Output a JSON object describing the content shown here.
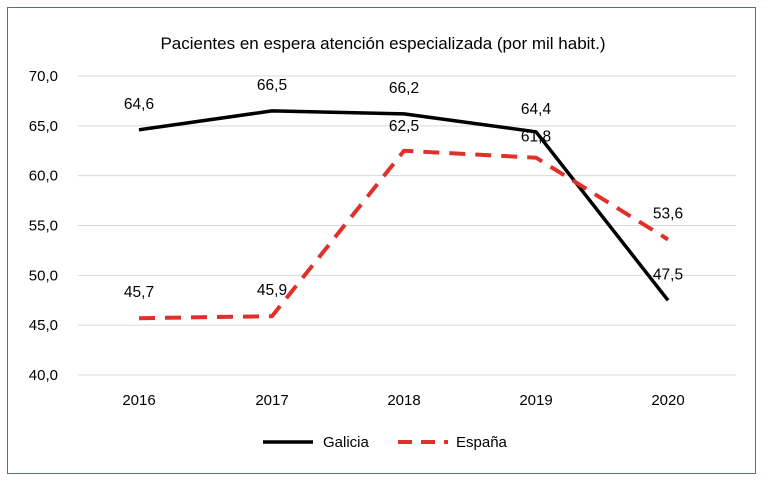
{
  "chart_data": {
    "type": "line",
    "title": "Pacientes en espera atención especializada (por mil habit.)",
    "categories": [
      "2016",
      "2017",
      "2018",
      "2019",
      "2020"
    ],
    "y_ticks": [
      "40,0",
      "45,0",
      "50,0",
      "55,0",
      "60,0",
      "65,0",
      "70,0"
    ],
    "ylim": [
      40,
      70
    ],
    "grid": true,
    "legend_position": "bottom",
    "series": [
      {
        "name": "Galicia",
        "values": [
          64.6,
          66.5,
          66.2,
          64.4,
          47.5
        ],
        "labels": [
          "64,6",
          "66,5",
          "66,2",
          "64,4",
          "47,5"
        ],
        "color": "#000000",
        "style": "solid"
      },
      {
        "name": "España",
        "values": [
          45.7,
          45.9,
          62.5,
          61.8,
          53.6
        ],
        "labels": [
          "45,7",
          "45,9",
          "62,5",
          "61,8",
          "53,6"
        ],
        "color": "#e0302a",
        "style": "dashed"
      }
    ]
  }
}
